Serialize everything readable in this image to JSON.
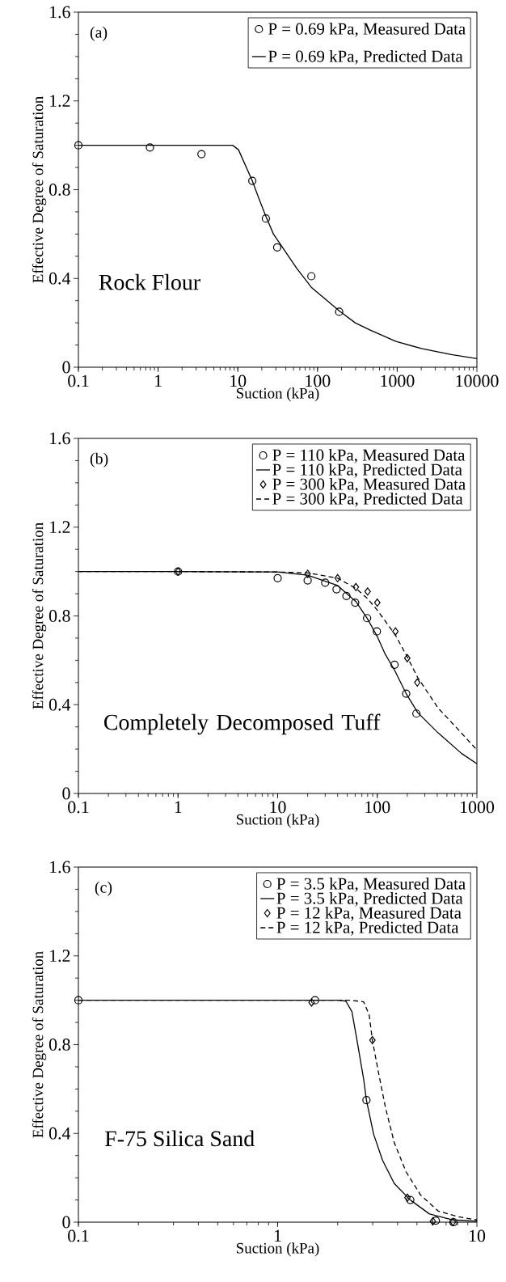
{
  "chart_data": [
    {
      "type": "line",
      "xlabel": "Suction (kPa)",
      "ylabel": "Effective Degree of Saturation",
      "annotations": [
        "(a)",
        "Rock Flour"
      ],
      "log": "x",
      "xlim": [
        0.1,
        10000
      ],
      "ylim": [
        0,
        1.6
      ],
      "xticks": [
        0.1,
        1,
        10,
        100,
        1000,
        10000
      ],
      "yticks": [
        0,
        0.4,
        0.8,
        1.2,
        1.6
      ],
      "legend": "top right",
      "series": [
        {
          "name": "P = 0.69 kPa, Measured Data",
          "type": "scatter",
          "marker": "circle",
          "color": "#000000",
          "x": [
            0.1,
            0.79,
            3.5,
            15.2,
            22.5,
            31.2,
            83.7,
            187
          ],
          "values": [
            1.0,
            0.99,
            0.96,
            0.84,
            0.67,
            0.54,
            0.41,
            0.25
          ]
        },
        {
          "name": "P = 0.69 kPa, Predicted Data",
          "type": "line",
          "line_style": "solid",
          "color": "#000000",
          "x": [
            0.1,
            1,
            8.6,
            10.2,
            15.2,
            18.4,
            22.5,
            28,
            55,
            83.7,
            187,
            297,
            453,
            966,
            2065,
            4790,
            10000
          ],
          "values": [
            1.0,
            1.0,
            1.0,
            0.98,
            0.84,
            0.76,
            0.68,
            0.6,
            0.445,
            0.36,
            0.254,
            0.2,
            0.168,
            0.116,
            0.083,
            0.057,
            0.039
          ]
        }
      ]
    },
    {
      "type": "line",
      "xlabel": "Suction (kPa)",
      "ylabel": "Effective Degree of Saturation",
      "annotations": [
        "(b)",
        "Completely Decomposed Tuff"
      ],
      "log": "x",
      "xlim": [
        0.1,
        1000
      ],
      "ylim": [
        0,
        1.6
      ],
      "xticks": [
        0.1,
        1,
        10,
        100,
        1000
      ],
      "yticks": [
        0,
        0.4,
        0.8,
        1.2,
        1.6
      ],
      "legend": "top right",
      "series": [
        {
          "name": "P = 110 kPa, Measured Data",
          "type": "scatter",
          "marker": "circle",
          "color": "#000000",
          "x": [
            1,
            10,
            20,
            30,
            39,
            49,
            60,
            79,
            99,
            149,
            195,
            247
          ],
          "values": [
            1.0,
            0.97,
            0.96,
            0.95,
            0.92,
            0.89,
            0.86,
            0.79,
            0.73,
            0.58,
            0.45,
            0.36
          ]
        },
        {
          "name": "P = 110 kPa, Predicted Data",
          "type": "line",
          "line_style": "solid",
          "color": "#000000",
          "x": [
            0.1,
            1,
            10,
            20,
            40,
            61,
            80,
            100,
            120,
            149,
            195,
            254,
            408,
            703,
            1000
          ],
          "values": [
            1.0,
            1.0,
            0.998,
            0.984,
            0.937,
            0.865,
            0.786,
            0.707,
            0.628,
            0.556,
            0.45,
            0.365,
            0.273,
            0.18,
            0.134
          ]
        },
        {
          "name": "P = 300 kPa, Measured Data",
          "type": "scatter",
          "marker": "diamond",
          "color": "#000000",
          "x": [
            1,
            20,
            40,
            61,
            80,
            100,
            152,
            200,
            252
          ],
          "values": [
            1.0,
            0.99,
            0.97,
            0.93,
            0.91,
            0.86,
            0.73,
            0.61,
            0.5
          ]
        },
        {
          "name": "P = 300 kPa, Predicted Data",
          "type": "line",
          "line_style": "dashed",
          "color": "#000000",
          "x": [
            0.1,
            1,
            10,
            20,
            40,
            61,
            80,
            100,
            152,
            200,
            254,
            408,
            656,
            1000
          ],
          "values": [
            1.0,
            1.0,
            0.998,
            0.994,
            0.97,
            0.924,
            0.878,
            0.826,
            0.714,
            0.615,
            0.523,
            0.385,
            0.286,
            0.196
          ]
        }
      ]
    },
    {
      "type": "line",
      "xlabel": "Suction (kPa)",
      "ylabel": "Effective Degree of Saturation",
      "annotations": [
        "(c)",
        "F-75 Silica Sand"
      ],
      "log": "x",
      "xlim": [
        0.1,
        10
      ],
      "ylim": [
        0,
        1.6
      ],
      "xticks": [
        0.1,
        1,
        10
      ],
      "yticks": [
        0,
        0.4,
        0.8,
        1.2,
        1.6
      ],
      "legend": "top right",
      "series": [
        {
          "name": "P = 3.5 kPa, Measured Data",
          "type": "scatter",
          "marker": "circle",
          "color": "#000000",
          "x": [
            0.1,
            1.54,
            2.79,
            4.63,
            6.22,
            7.62
          ],
          "values": [
            1.0,
            1.0,
            0.55,
            0.1,
            0.007,
            0.0
          ]
        },
        {
          "name": "P = 3.5 kPa, Predicted Data",
          "type": "line",
          "line_style": "solid",
          "color": "#000000",
          "x": [
            0.1,
            2.02,
            2.2,
            2.36,
            2.52,
            2.7,
            2.79,
            3.03,
            3.36,
            3.85,
            4.63,
            5.78,
            7.6,
            10
          ],
          "values": [
            1.0,
            1.0,
            0.996,
            0.948,
            0.803,
            0.646,
            0.55,
            0.397,
            0.279,
            0.174,
            0.1,
            0.037,
            0.01,
            0.004
          ]
        },
        {
          "name": "P = 12 kPa, Measured Data",
          "type": "scatter",
          "marker": "diamond",
          "color": "#000000",
          "x": [
            1.48,
            2.99,
            4.48,
            6.01,
            7.58
          ],
          "values": [
            0.99,
            0.82,
            0.11,
            0.004,
            0.001
          ]
        },
        {
          "name": "P = 12 kPa, Predicted Data",
          "type": "line",
          "line_style": "dashed",
          "color": "#000000",
          "x": [
            0.1,
            2.32,
            2.7,
            2.88,
            2.99,
            3.21,
            3.48,
            3.85,
            4.41,
            5.22,
            6.4,
            8.1,
            10
          ],
          "values": [
            1.0,
            1.0,
            0.993,
            0.934,
            0.819,
            0.672,
            0.515,
            0.358,
            0.227,
            0.122,
            0.05,
            0.024,
            0.01
          ]
        }
      ]
    }
  ]
}
